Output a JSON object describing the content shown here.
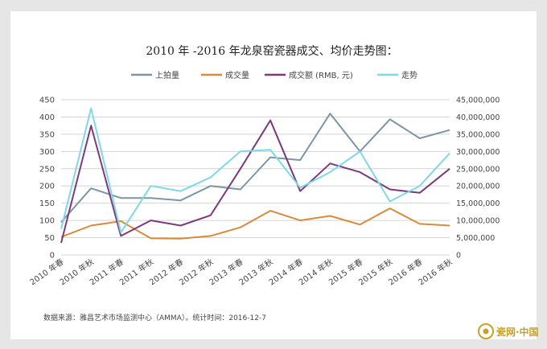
{
  "chart_data": {
    "type": "line",
    "title": "2010 年 -2016 年龙泉窑瓷器成交、均价走势图：",
    "categories": [
      "2010 年春",
      "2010 年秋",
      "2011 年春",
      "2011 年秋",
      "2012 年春",
      "2012 年秋",
      "2013 年春",
      "2013 年秋",
      "2014 年春",
      "2014 年秋",
      "2015 年春",
      "2015 年秋",
      "2016 年春",
      "2016 年秋"
    ],
    "left_axis": {
      "ylim": [
        0,
        450
      ],
      "ticks": [
        "0",
        "50",
        "100",
        "150",
        "200",
        "250",
        "300",
        "350",
        "400",
        "450"
      ]
    },
    "right_axis": {
      "ylim": [
        0,
        45000000
      ],
      "ticks": [
        "0",
        "5,000,000",
        "10,000,000",
        "15,000,000",
        "20,000,000",
        "25,000,000",
        "30,000,000",
        "35,000,000",
        "40,000,000",
        "45,000,000"
      ]
    },
    "grid": true,
    "legend_position": "top",
    "series": [
      {
        "name": "上拍量",
        "axis": "left",
        "color": "#7d96a3",
        "values": [
          95,
          193,
          165,
          165,
          158,
          200,
          190,
          283,
          275,
          410,
          300,
          393,
          338,
          362
        ]
      },
      {
        "name": "成交量",
        "axis": "left",
        "color": "#d98a3a",
        "values": [
          52,
          85,
          98,
          48,
          47,
          55,
          80,
          128,
          100,
          113,
          88,
          135,
          90,
          85
        ]
      },
      {
        "name": "成交额 (RMB, 元)",
        "axis": "right",
        "color": "#7b3a7d",
        "values": [
          3500000,
          37500000,
          5500000,
          10000000,
          8500000,
          11500000,
          25000000,
          39000000,
          18500000,
          26500000,
          24000000,
          19000000,
          18000000,
          25000000
        ]
      },
      {
        "name": "走势",
        "axis": "right",
        "color": "#7fd8e6",
        "values": [
          7500000,
          42500000,
          6500000,
          20000000,
          18500000,
          22500000,
          30000000,
          30500000,
          19500000,
          24000000,
          30000000,
          15500000,
          20000000,
          29500000
        ]
      }
    ]
  },
  "source_note": "数据来源：雅昌艺术市场监测中心（AMMA）。统计时间：2016-12-7",
  "watermark": "瓷网·中国"
}
